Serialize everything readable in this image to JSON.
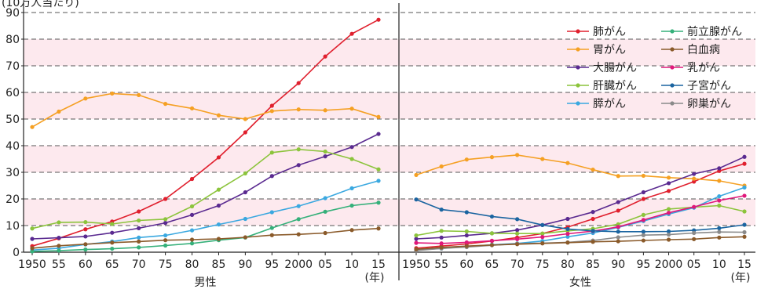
{
  "chart_data": {
    "type": "line",
    "ylabel": "(10万人当たり)",
    "x_unit": "(年)",
    "yticks": [
      0,
      10,
      20,
      30,
      40,
      50,
      60,
      70,
      80,
      90
    ],
    "ylim": [
      0,
      90
    ],
    "grid": "dashed horizontal, pink bands",
    "legend_position": "top-right",
    "x_tick_labels": [
      "1950",
      "55",
      "60",
      "65",
      "70",
      "75",
      "80",
      "85",
      "90",
      "95",
      "2000",
      "05",
      "10",
      "15"
    ],
    "x": [
      1950,
      1955,
      1960,
      1965,
      1970,
      1975,
      1980,
      1985,
      1990,
      1995,
      2000,
      2005,
      2010,
      2015
    ],
    "panels": [
      {
        "label": "男性",
        "series": [
          {
            "key": "lung",
            "values": [
              2.3,
              5.2,
              8.6,
              11.5,
              15.3,
              20.0,
              27.5,
              35.6,
              45.0,
              55.0,
              63.5,
              73.5,
              82.0,
              87.3
            ]
          },
          {
            "key": "stomach",
            "values": [
              47.0,
              52.8,
              57.7,
              59.6,
              59.0,
              55.7,
              54.0,
              51.4,
              50.0,
              53.0,
              53.6,
              53.3,
              53.9,
              50.8
            ]
          },
          {
            "key": "colon",
            "values": [
              5.0,
              5.4,
              5.9,
              7.3,
              9.0,
              11.0,
              14.0,
              17.5,
              22.5,
              28.6,
              32.7,
              36.0,
              39.5,
              44.4
            ]
          },
          {
            "key": "liver",
            "values": [
              8.9,
              11.2,
              11.3,
              10.6,
              11.9,
              12.4,
              17.2,
              23.5,
              29.6,
              37.4,
              38.6,
              37.8,
              35.0,
              31.1
            ]
          },
          {
            "key": "pancreas",
            "values": [
              0.8,
              1.5,
              2.9,
              4.0,
              5.5,
              6.3,
              8.2,
              10.4,
              12.5,
              15.0,
              17.3,
              20.3,
              24.0,
              26.8
            ]
          },
          {
            "key": "prostate",
            "values": [
              0.3,
              0.6,
              1.0,
              1.3,
              1.8,
              2.5,
              3.3,
              4.5,
              5.5,
              9.1,
              12.4,
              15.2,
              17.5,
              18.6
            ]
          },
          {
            "key": "leukemia",
            "values": [
              1.5,
              2.4,
              3.0,
              3.6,
              4.0,
              4.5,
              4.7,
              5.0,
              5.6,
              6.4,
              6.7,
              7.2,
              8.3,
              8.9
            ]
          }
        ]
      },
      {
        "label": "女性",
        "series": [
          {
            "key": "lung",
            "values": [
              1.5,
              2.3,
              3.1,
              4.2,
              5.5,
              7.0,
              9.4,
              12.5,
              15.6,
              20.0,
              23.0,
              26.5,
              30.5,
              33.2
            ]
          },
          {
            "key": "stomach",
            "values": [
              29.0,
              32.2,
              34.8,
              35.7,
              36.5,
              35.0,
              33.5,
              31.0,
              28.6,
              28.7,
              28.0,
              27.6,
              26.8,
              25.0
            ]
          },
          {
            "key": "colon",
            "values": [
              5.0,
              5.5,
              6.3,
              7.1,
              8.3,
              10.2,
              12.5,
              15.1,
              18.8,
              22.5,
              25.9,
              29.4,
              31.5,
              35.8
            ]
          },
          {
            "key": "liver",
            "values": [
              6.3,
              8.0,
              7.8,
              7.1,
              7.0,
              7.0,
              8.0,
              8.8,
              10.5,
              14.0,
              16.2,
              16.9,
              17.5,
              15.3
            ]
          },
          {
            "key": "pancreas",
            "values": [
              0.8,
              1.4,
              2.1,
              2.8,
              3.3,
              4.2,
              5.8,
              7.2,
              9.3,
              11.7,
              14.3,
              16.7,
              21.0,
              24.3
            ]
          },
          {
            "key": "breast",
            "values": [
              3.5,
              3.3,
              3.7,
              4.3,
              4.9,
              5.7,
              6.9,
              7.9,
              9.5,
              12.1,
              14.8,
              17.0,
              19.4,
              21.2
            ]
          },
          {
            "key": "uterus",
            "values": [
              19.8,
              16.0,
              15.0,
              13.4,
              12.4,
              10.2,
              8.7,
              8.0,
              7.7,
              7.7,
              7.8,
              8.2,
              9.0,
              10.3
            ]
          },
          {
            "key": "ovary",
            "values": [
              0.6,
              1.4,
              1.9,
              2.6,
              3.2,
              3.4,
              3.7,
              4.4,
              5.6,
              6.4,
              6.6,
              7.2,
              7.6,
              7.5
            ]
          },
          {
            "key": "leukemia",
            "values": [
              1.1,
              1.8,
              2.3,
              2.7,
              3.0,
              3.3,
              3.6,
              3.9,
              4.1,
              4.4,
              4.7,
              4.9,
              5.5,
              5.8
            ]
          }
        ]
      }
    ],
    "legend": [
      {
        "key": "lung",
        "label": "肺がん",
        "color": "#e0202e"
      },
      {
        "key": "prostate",
        "label": "前立腺がん",
        "color": "#35b07a"
      },
      {
        "key": "stomach",
        "label": "胃がん",
        "color": "#f5a023"
      },
      {
        "key": "leukemia",
        "label": "白血病",
        "color": "#8a5a2a"
      },
      {
        "key": "colon",
        "label": "大腸がん",
        "color": "#5a2a90"
      },
      {
        "key": "breast",
        "label": "乳がん",
        "color": "#e0187a"
      },
      {
        "key": "liver",
        "label": "肝臓がん",
        "color": "#8cc43c"
      },
      {
        "key": "uterus",
        "label": "子宮がん",
        "color": "#1a64a0"
      },
      {
        "key": "pancreas",
        "label": "膵がん",
        "color": "#3aa8e0"
      },
      {
        "key": "ovary",
        "label": "卵巣がん",
        "color": "#8a8a8a"
      }
    ],
    "colors": {
      "band": "#fde9ee",
      "grid": "#555555",
      "axis": "#222222"
    }
  }
}
